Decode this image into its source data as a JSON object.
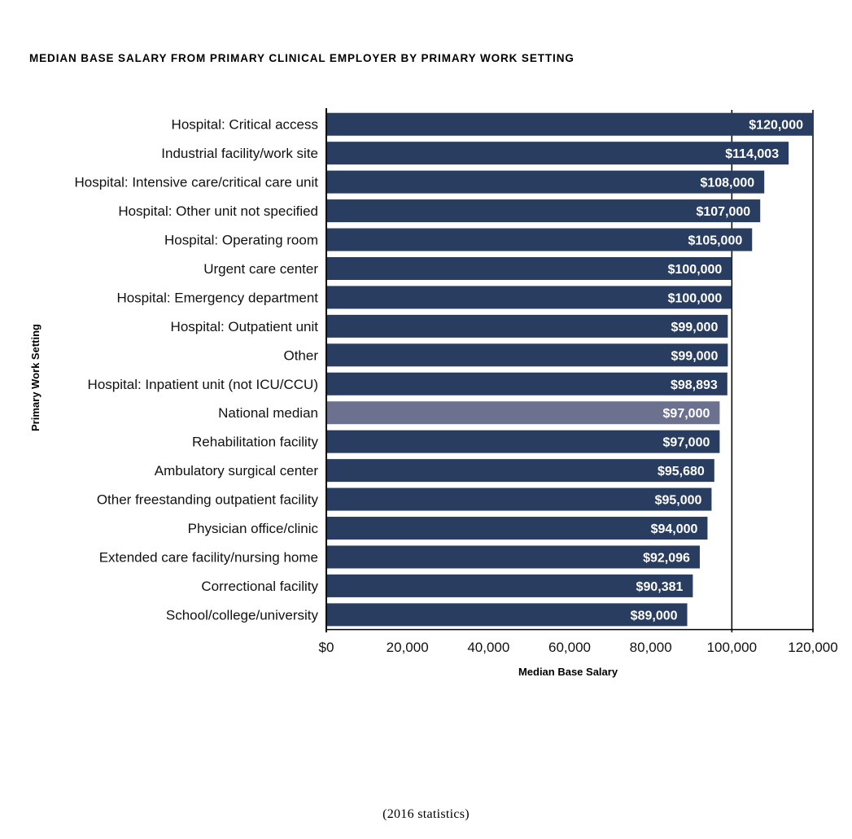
{
  "title": "MEDIAN BASE SALARY FROM PRIMARY CLINICAL EMPLOYER BY PRIMARY WORK SETTING",
  "footnote": "(2016 statistics)",
  "colors": {
    "bar": "#283d5f",
    "highlight": "#6d7190",
    "gridline": "#000000"
  },
  "chart_data": {
    "type": "bar",
    "orientation": "horizontal",
    "xlabel": "Median Base Salary",
    "ylabel": "Primary Work Setting",
    "xlim": [
      0,
      120000
    ],
    "xticks": [
      0,
      20000,
      40000,
      60000,
      80000,
      100000,
      120000
    ],
    "xtick_labels": [
      "$0",
      "20,000",
      "40,000",
      "60,000",
      "80,000",
      "100,000",
      "120,000"
    ],
    "grid": "vertical lines at 100,000 and 120,000",
    "categories": [
      "Hospital: Critical access",
      "Industrial facility/work site",
      "Hospital: Intensive care/critical care unit",
      "Hospital: Other unit not specified",
      "Hospital: Operating room",
      "Urgent care center",
      "Hospital: Emergency department",
      "Hospital: Outpatient unit",
      "Other",
      "Hospital: Inpatient unit (not ICU/CCU)",
      "National median",
      "Rehabilitation facility",
      "Ambulatory surgical center",
      "Other freestanding outpatient facility",
      "Physician office/clinic",
      "Extended care facility/nursing home",
      "Correctional facility",
      "School/college/university"
    ],
    "values": [
      120000,
      114003,
      108000,
      107000,
      105000,
      100000,
      100000,
      99000,
      99000,
      98893,
      97000,
      97000,
      95680,
      95000,
      94000,
      92096,
      90381,
      89000
    ],
    "value_labels": [
      "$120,000",
      "$114,003",
      "$108,000",
      "$107,000",
      "$105,000",
      "$100,000",
      "$100,000",
      "$99,000",
      "$99,000",
      "$98,893",
      "$97,000",
      "$97,000",
      "$95,680",
      "$95,000",
      "$94,000",
      "$92,096",
      "$90,381",
      "$89,000"
    ],
    "highlight": "National median"
  }
}
